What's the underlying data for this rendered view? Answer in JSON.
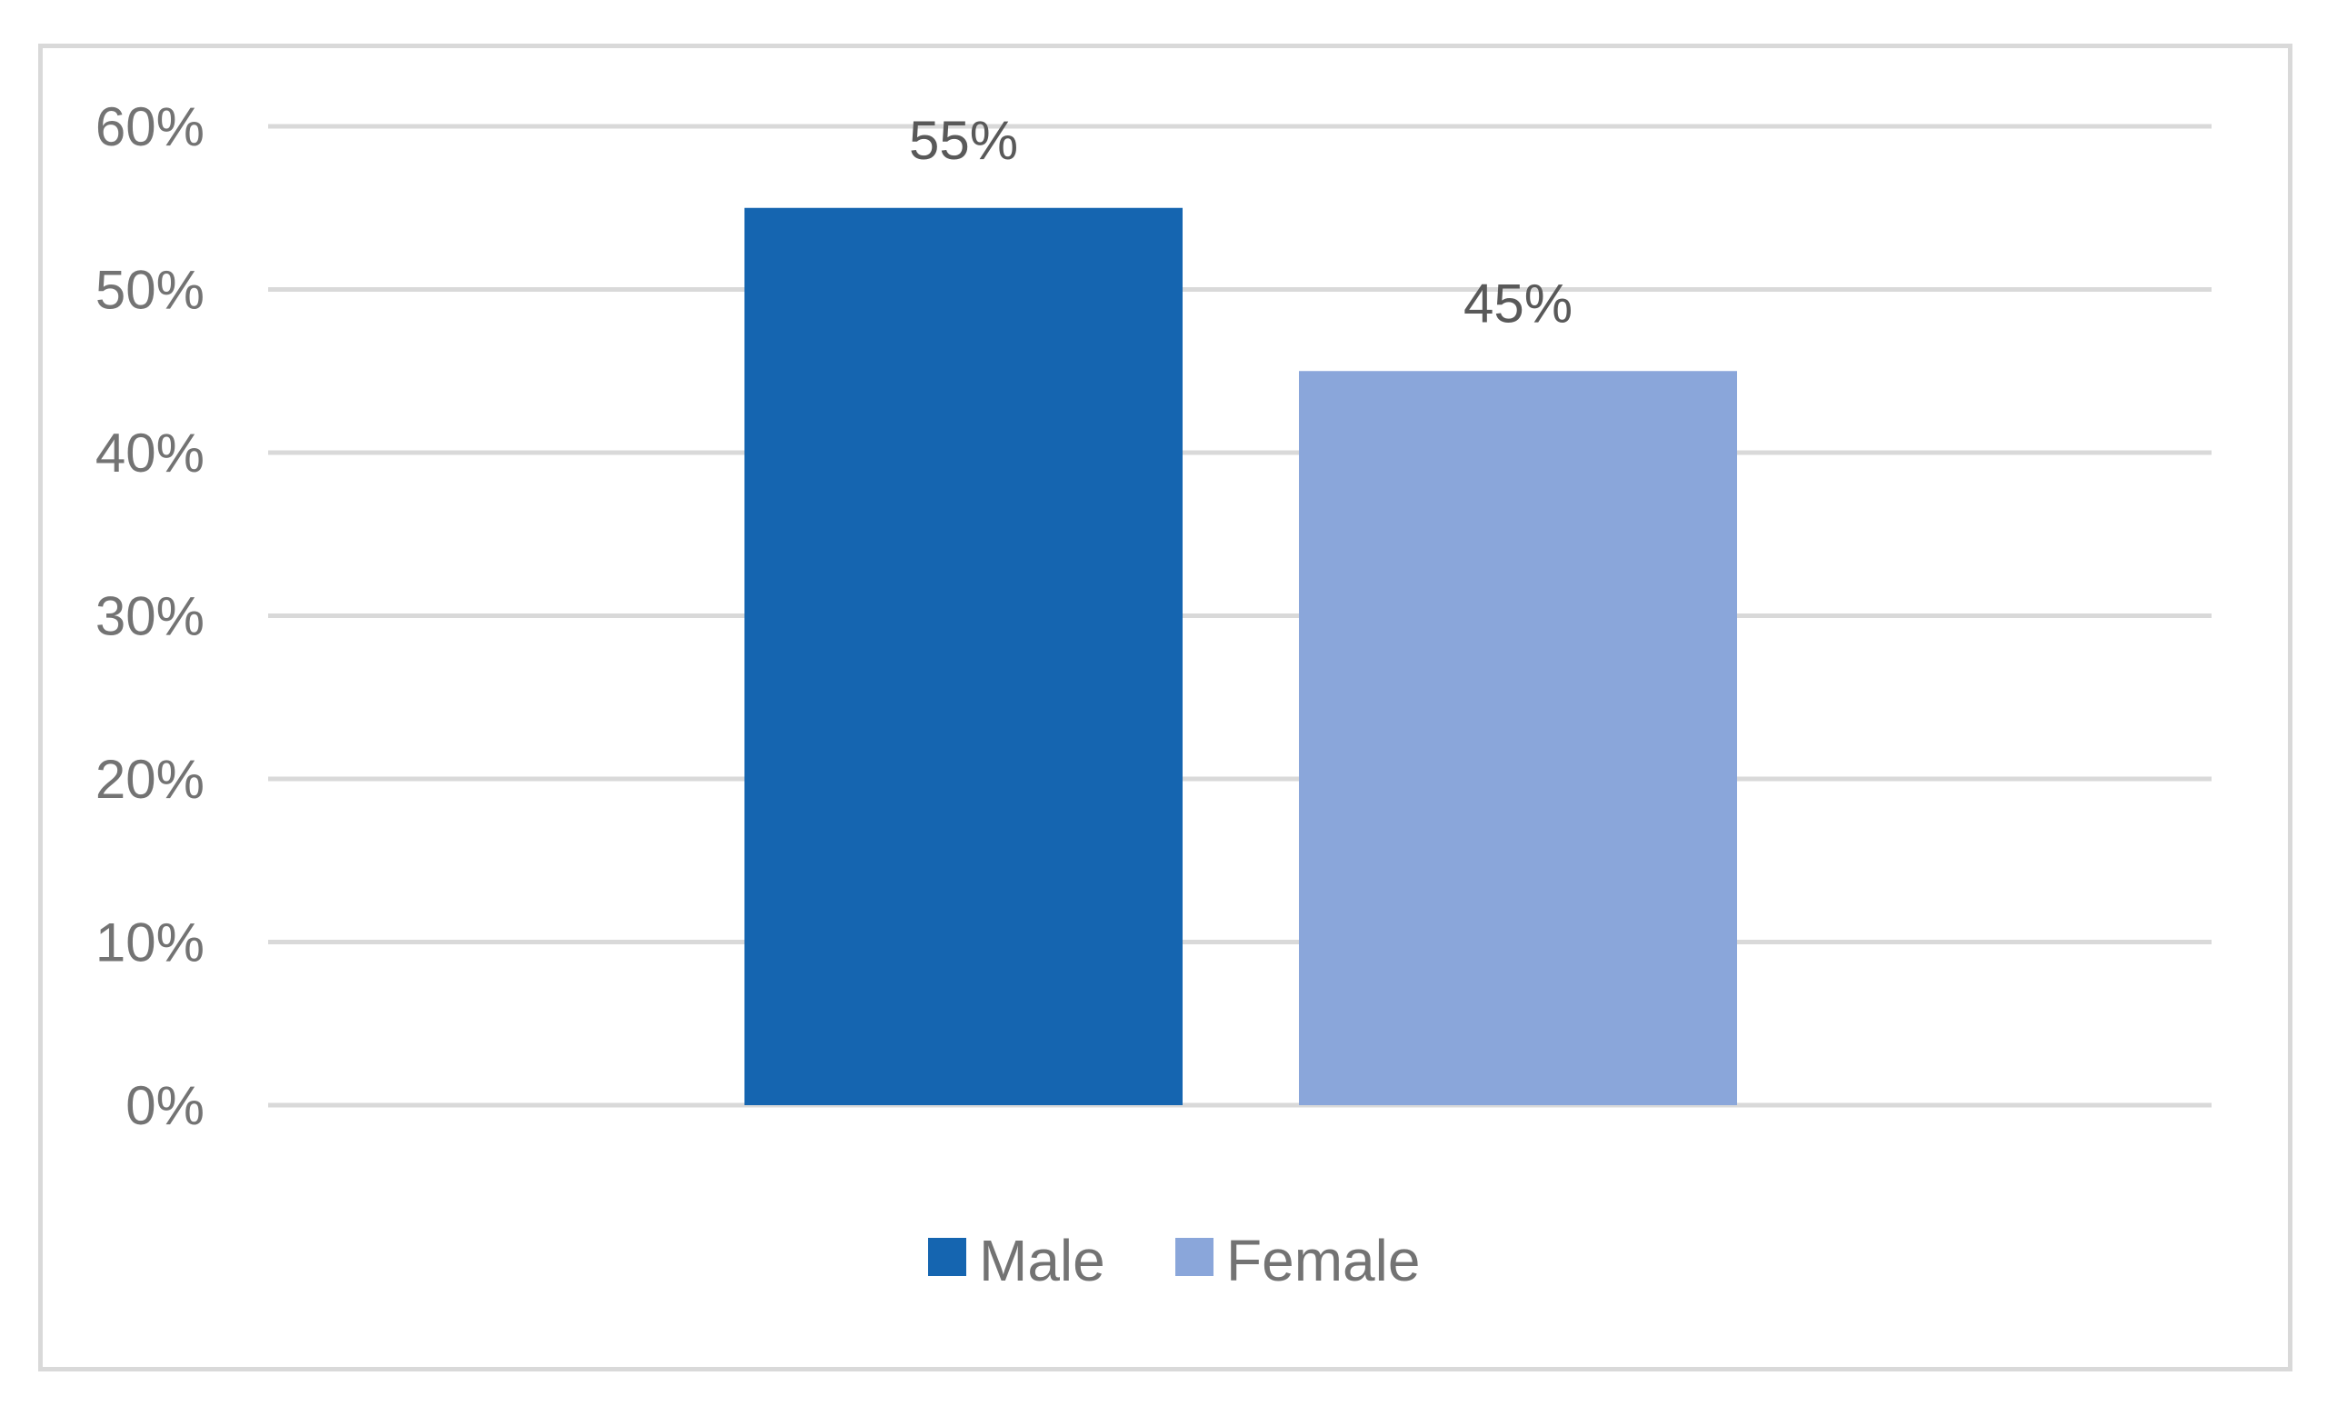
{
  "chart_data": {
    "type": "bar",
    "categories": [
      ""
    ],
    "series": [
      {
        "name": "Male",
        "values": [
          55
        ],
        "color": "#1565b0",
        "value_label": "55%"
      },
      {
        "name": "Female",
        "values": [
          45
        ],
        "color": "#8aa6da",
        "value_label": "45%"
      }
    ],
    "ylim": [
      0,
      60
    ],
    "yticks": [
      0,
      10,
      20,
      30,
      40,
      50,
      60
    ],
    "ytick_labels": [
      "0%",
      "10%",
      "20%",
      "30%",
      "40%",
      "50%",
      "60%"
    ],
    "grid": true,
    "grid_color": "#d9d9d9",
    "legend_position": "bottom",
    "title": "",
    "xlabel": "",
    "ylabel": ""
  }
}
